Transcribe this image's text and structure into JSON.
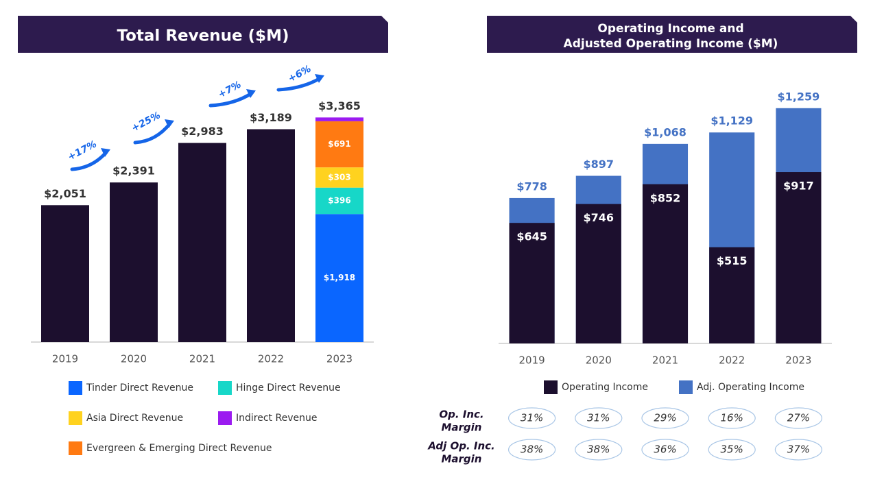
{
  "chart_data": [
    {
      "type": "bar",
      "stacked": true,
      "title": "Total Revenue ($M)",
      "categories": [
        "2019",
        "2020",
        "2021",
        "2022",
        "2023"
      ],
      "ylim": [
        0,
        3800
      ],
      "series": [
        {
          "color": "#1c0f2e",
          "values": [
            2051,
            2391,
            2983,
            3189,
            null
          ]
        },
        {
          "name": "Tinder Direct Revenue",
          "color": "#0a66ff",
          "values": [
            null,
            null,
            null,
            null,
            1918
          ],
          "value_labels": [
            null,
            null,
            null,
            null,
            "$1,918"
          ]
        },
        {
          "name": "Hinge Direct Revenue",
          "color": "#17d7c8",
          "values": [
            null,
            null,
            null,
            null,
            396
          ],
          "value_labels": [
            null,
            null,
            null,
            null,
            "$396"
          ]
        },
        {
          "name": "Asia Direct Revenue",
          "color": "#ffd21f",
          "values": [
            null,
            null,
            null,
            null,
            303
          ],
          "value_labels": [
            null,
            null,
            null,
            null,
            "$303"
          ]
        },
        {
          "name": "Evergreen & Emerging Direct Revenue",
          "color": "#ff7a12",
          "values": [
            null,
            null,
            null,
            null,
            691
          ],
          "value_labels": [
            null,
            null,
            null,
            null,
            "$691"
          ]
        },
        {
          "name": "Indirect Revenue",
          "color": "#9b1bf0",
          "values": [
            null,
            null,
            null,
            null,
            57
          ]
        }
      ],
      "totals": [
        2051,
        2391,
        2983,
        3189,
        3365
      ],
      "total_labels": [
        "$2,051",
        "$2,391",
        "$2,983",
        "$3,189",
        "$3,365"
      ],
      "annotations": [
        "+17%",
        "+25%",
        "+7%",
        "+6%"
      ]
    },
    {
      "type": "bar",
      "overlap": true,
      "title": [
        "Operating Income and",
        "Adjusted Operating Income ($M)"
      ],
      "categories": [
        "2019",
        "2020",
        "2021",
        "2022",
        "2023"
      ],
      "ylim": [
        0,
        1350
      ],
      "series": [
        {
          "name": "Operating Income",
          "color": "#1c0f2e",
          "values": [
            645,
            746,
            852,
            515,
            917
          ],
          "value_labels": [
            "$645",
            "$746",
            "$852",
            "$515",
            "$917"
          ]
        },
        {
          "name": "Adj. Operating Income",
          "color": "#4472c4",
          "values": [
            778,
            897,
            1068,
            1129,
            1259
          ],
          "value_labels": [
            "$778",
            "$897",
            "$1,068",
            "$1,129",
            "$1,259"
          ]
        }
      ],
      "margins": [
        {
          "label": [
            "Op. Inc.",
            "Margin"
          ],
          "values": [
            31,
            31,
            29,
            16,
            27
          ],
          "value_labels": [
            "31%",
            "31%",
            "29%",
            "16%",
            "27%"
          ]
        },
        {
          "label": [
            "Adj Op. Inc.",
            "Margin"
          ],
          "values": [
            38,
            38,
            36,
            35,
            37
          ],
          "value_labels": [
            "38%",
            "38%",
            "36%",
            "35%",
            "37%"
          ]
        }
      ]
    }
  ]
}
